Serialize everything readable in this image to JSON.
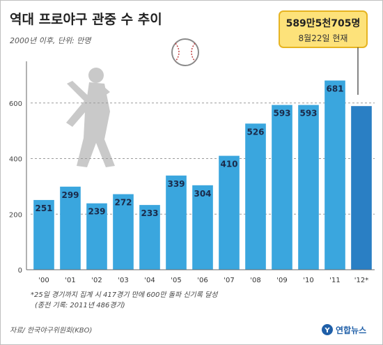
{
  "chart_data": {
    "type": "bar",
    "title": "역대 프로야구 관중 수 추이",
    "subtitle": "2000년 이후, 단위: 만명",
    "categories": [
      "'00",
      "'01",
      "'02",
      "'03",
      "'04",
      "'05",
      "'06",
      "'07",
      "'08",
      "'09",
      "'10",
      "'11",
      "'12*"
    ],
    "values": [
      251,
      299,
      239,
      272,
      233,
      339,
      304,
      410,
      526,
      593,
      593,
      681,
      589
    ],
    "value_labels": [
      "251",
      "299",
      "239",
      "272",
      "233",
      "339",
      "304",
      "410",
      "526",
      "593",
      "593",
      "681",
      ""
    ],
    "yticks": [
      "0",
      "200",
      "400",
      "600"
    ],
    "ylim": [
      0,
      740
    ],
    "grid": true,
    "callout": {
      "line1": "589만5천705명",
      "line2": "8월22일 현재"
    },
    "footnote1": "*25일 경기까지 집계 시 417경기 만에 600만 돌파 신기록 달성",
    "footnote2": "(종전 기록: 2011년 486경기)",
    "source": "자료/ 한국야구위원회(KBO)",
    "brand": "연합뉴스",
    "colors": {
      "bar": "#3aa6de",
      "bar_highlight": "#2a7fc4",
      "callout_bg": "#fde27a",
      "callout_border": "#e6b422"
    }
  }
}
